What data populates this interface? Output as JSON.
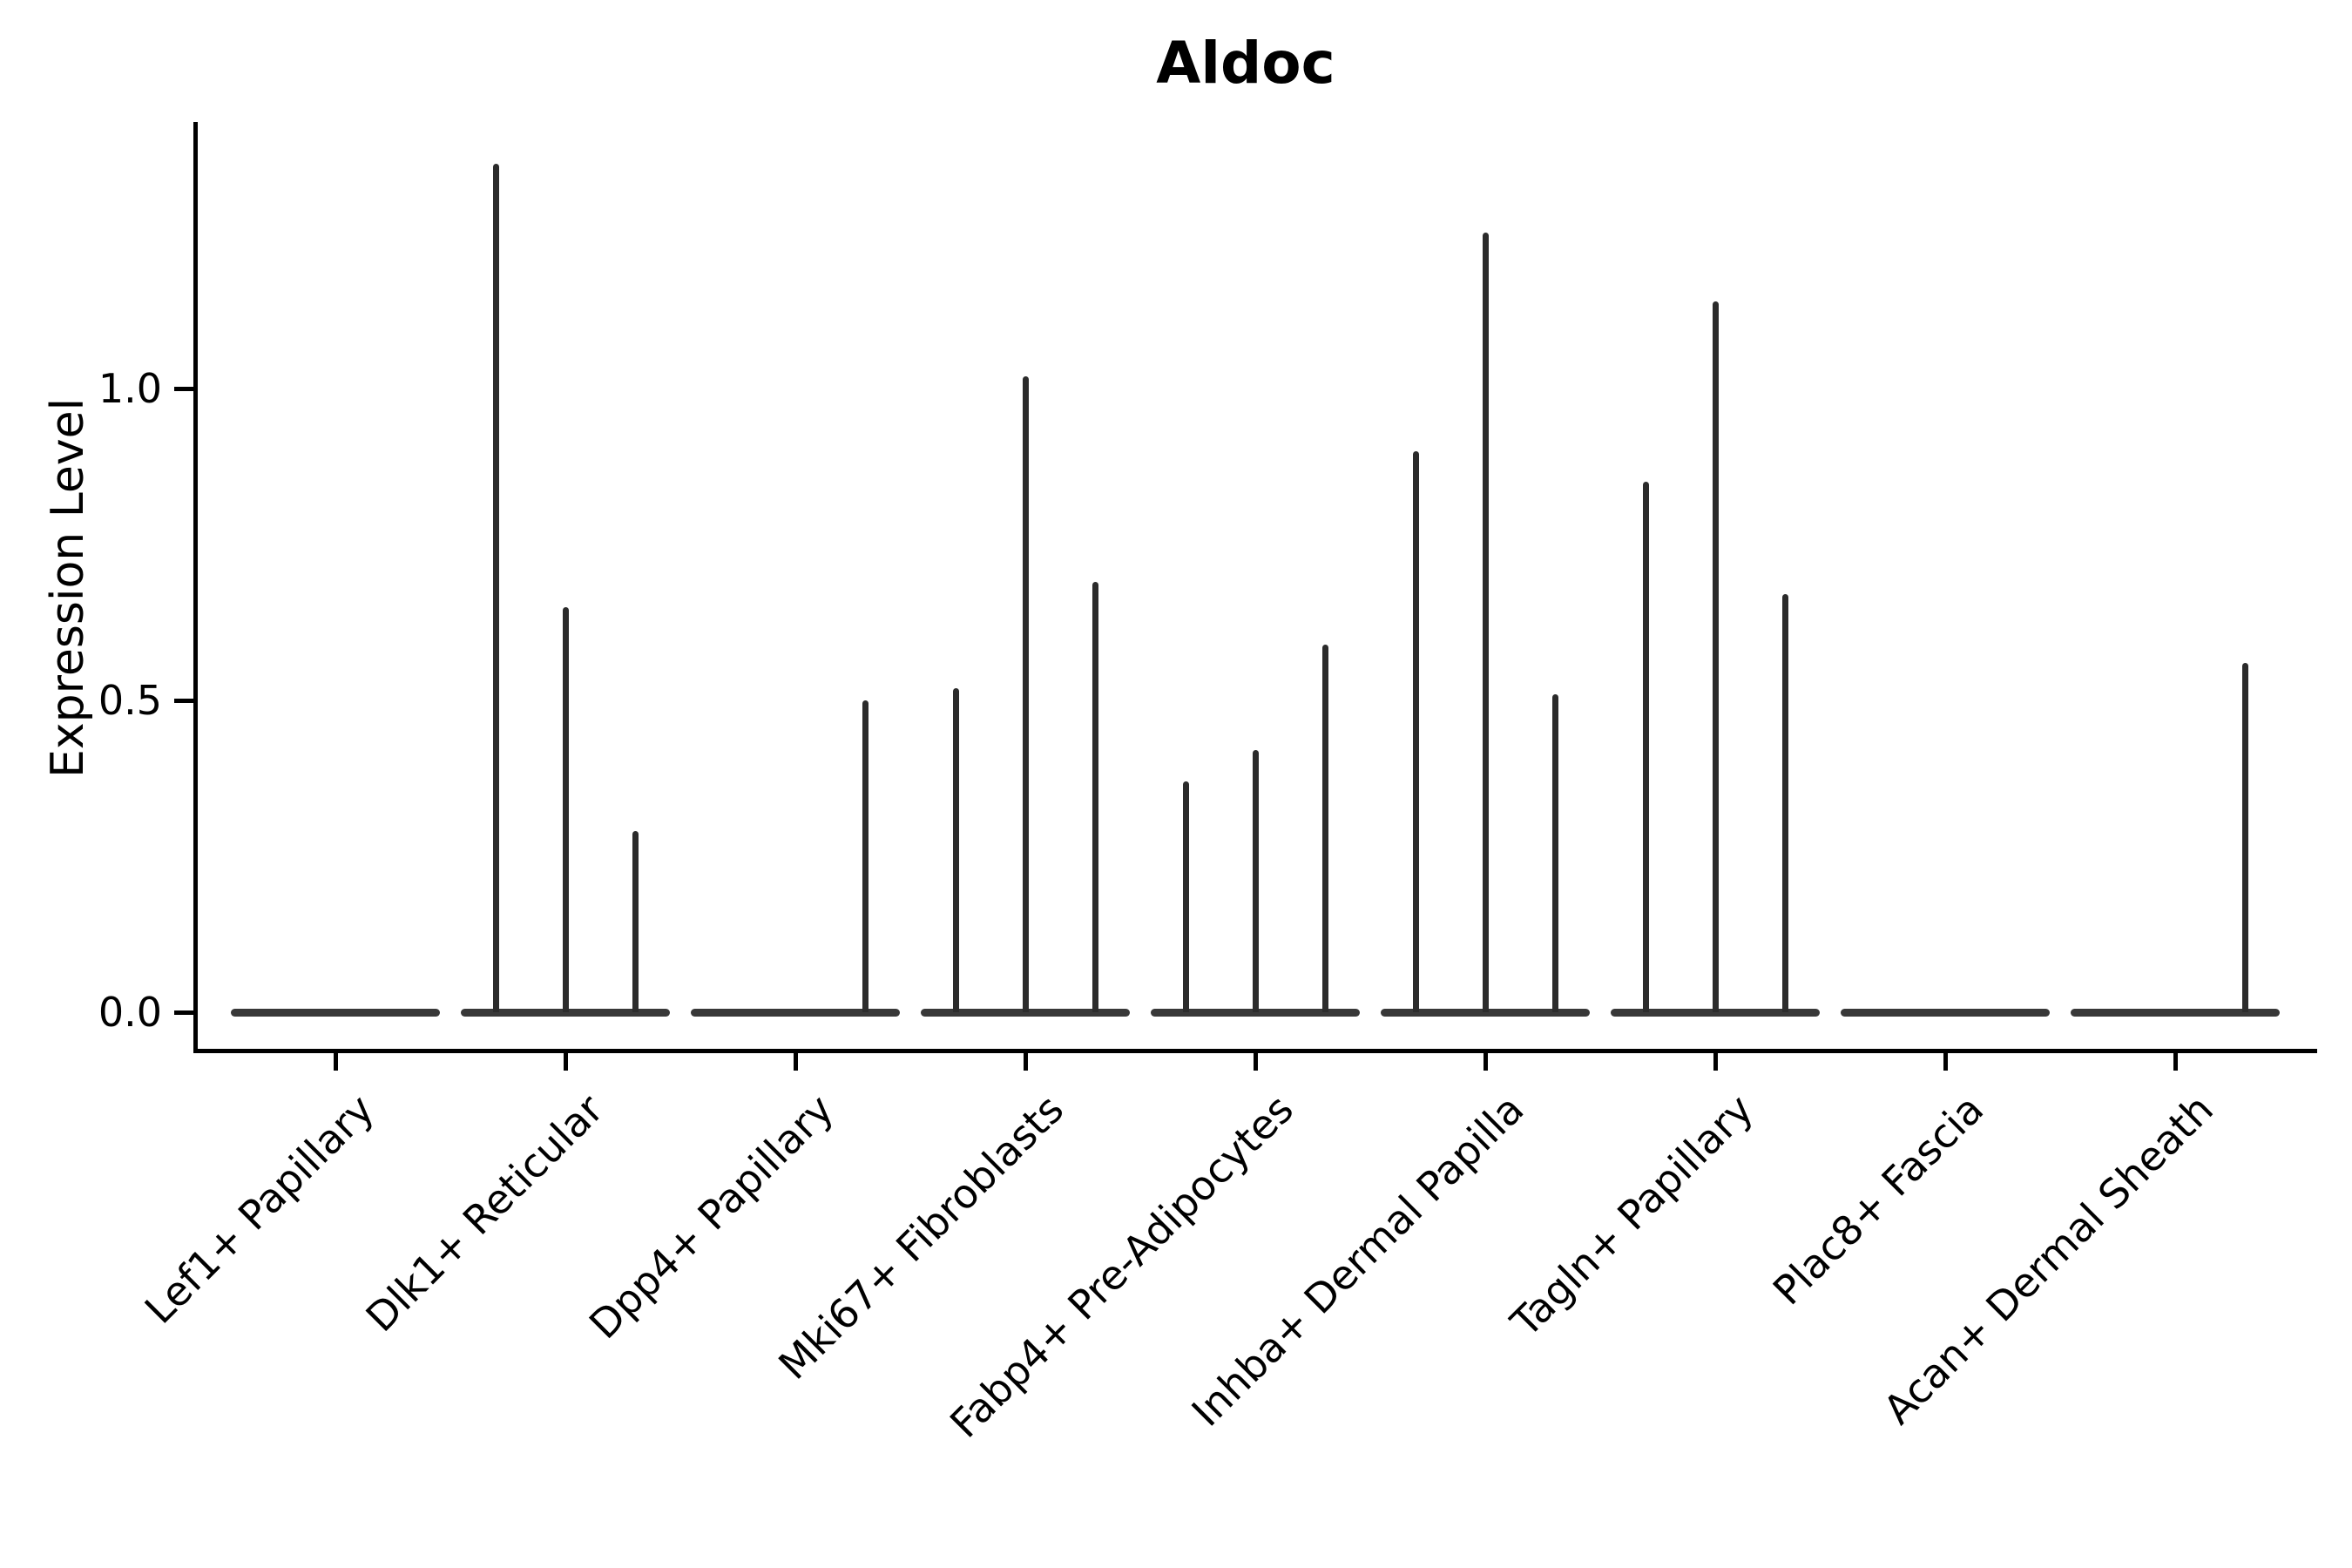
{
  "chart_data": {
    "type": "violin",
    "title": "Aldoc",
    "ylabel": "Expression Level",
    "xlabel": "",
    "yticks": [
      "0.0",
      "0.5",
      "1.0"
    ],
    "ylim": [
      -0.07,
      1.43
    ],
    "grid": false,
    "legend": "none",
    "description": "Needle-thin stacked violin plot of Aldoc expression; each cell-type category contains three collapsed sub-violins (left, center, right); values are the peak expression level each sub-violin reaches, 0 = flat baseline only",
    "categories": [
      "Lef1+ Papillary",
      "Dlk1+ Reticular",
      "Dpp4+ Papillary",
      "Mki67+ Fibroblasts",
      "Fabp4+ Pre-Adipocytes",
      "Inhba+ Dermal Papilla",
      "Tagln+ Papillary",
      "Plac8+ Fascia",
      "Acan+ Dermal Sheath"
    ],
    "series": [
      {
        "name": "left sub-violin",
        "values": [
          0,
          1.36,
          0,
          0.52,
          0.37,
          0.9,
          0.85,
          0,
          0
        ]
      },
      {
        "name": "center sub-violin",
        "values": [
          0,
          0.65,
          0,
          1.02,
          0.42,
          1.25,
          1.14,
          0,
          0
        ]
      },
      {
        "name": "right sub-violin",
        "values": [
          0,
          0.29,
          0.5,
          0.69,
          0.59,
          0.51,
          0.67,
          0,
          0.56
        ]
      }
    ],
    "colors": {
      "violin_edge": "#2b2b2b",
      "baseline": "#383838",
      "axis": "#000000",
      "background": "#ffffff"
    }
  }
}
